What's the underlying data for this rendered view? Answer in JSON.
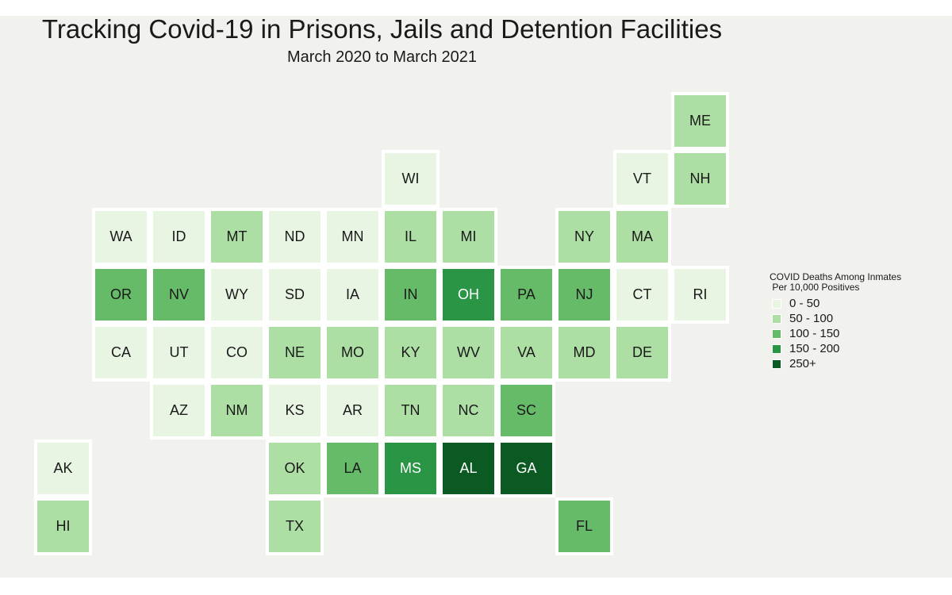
{
  "title": "Tracking Covid-19 in Prisons, Jails and Detention Facilities",
  "subtitle": "March 2020 to March 2021",
  "legend": {
    "title": "COVID Deaths Among Inmates\n Per 10,000 Positives",
    "items": [
      {
        "label": "0 - 50",
        "color": "#e9f5e3"
      },
      {
        "label": "50 - 100",
        "color": "#addfa4"
      },
      {
        "label": "100 - 150",
        "color": "#66bb69"
      },
      {
        "label": "150 - 200",
        "color": "#2b9546"
      },
      {
        "label": "250+",
        "color": "#0c5a23"
      }
    ]
  },
  "chart_data": {
    "type": "heatmap",
    "encoding": "tile grid map of US states; value = legend bin index (0 = 0 - 50 ... 4 = 250+)",
    "states": [
      {
        "abbr": "ME",
        "row": 0,
        "col": 11,
        "bin": 1
      },
      {
        "abbr": "WI",
        "row": 1,
        "col": 6,
        "bin": 0
      },
      {
        "abbr": "VT",
        "row": 1,
        "col": 10,
        "bin": 0
      },
      {
        "abbr": "NH",
        "row": 1,
        "col": 11,
        "bin": 1
      },
      {
        "abbr": "WA",
        "row": 2,
        "col": 1,
        "bin": 0
      },
      {
        "abbr": "ID",
        "row": 2,
        "col": 2,
        "bin": 0
      },
      {
        "abbr": "MT",
        "row": 2,
        "col": 3,
        "bin": 1
      },
      {
        "abbr": "ND",
        "row": 2,
        "col": 4,
        "bin": 0
      },
      {
        "abbr": "MN",
        "row": 2,
        "col": 5,
        "bin": 0
      },
      {
        "abbr": "IL",
        "row": 2,
        "col": 6,
        "bin": 1
      },
      {
        "abbr": "MI",
        "row": 2,
        "col": 7,
        "bin": 1
      },
      {
        "abbr": "NY",
        "row": 2,
        "col": 9,
        "bin": 1
      },
      {
        "abbr": "MA",
        "row": 2,
        "col": 10,
        "bin": 1
      },
      {
        "abbr": "OR",
        "row": 3,
        "col": 1,
        "bin": 2
      },
      {
        "abbr": "NV",
        "row": 3,
        "col": 2,
        "bin": 2
      },
      {
        "abbr": "WY",
        "row": 3,
        "col": 3,
        "bin": 0
      },
      {
        "abbr": "SD",
        "row": 3,
        "col": 4,
        "bin": 0
      },
      {
        "abbr": "IA",
        "row": 3,
        "col": 5,
        "bin": 0
      },
      {
        "abbr": "IN",
        "row": 3,
        "col": 6,
        "bin": 2
      },
      {
        "abbr": "OH",
        "row": 3,
        "col": 7,
        "bin": 3
      },
      {
        "abbr": "PA",
        "row": 3,
        "col": 8,
        "bin": 2
      },
      {
        "abbr": "NJ",
        "row": 3,
        "col": 9,
        "bin": 2
      },
      {
        "abbr": "CT",
        "row": 3,
        "col": 10,
        "bin": 0
      },
      {
        "abbr": "RI",
        "row": 3,
        "col": 11,
        "bin": 0
      },
      {
        "abbr": "CA",
        "row": 4,
        "col": 1,
        "bin": 0
      },
      {
        "abbr": "UT",
        "row": 4,
        "col": 2,
        "bin": 0
      },
      {
        "abbr": "CO",
        "row": 4,
        "col": 3,
        "bin": 0
      },
      {
        "abbr": "NE",
        "row": 4,
        "col": 4,
        "bin": 1
      },
      {
        "abbr": "MO",
        "row": 4,
        "col": 5,
        "bin": 1
      },
      {
        "abbr": "KY",
        "row": 4,
        "col": 6,
        "bin": 1
      },
      {
        "abbr": "WV",
        "row": 4,
        "col": 7,
        "bin": 1
      },
      {
        "abbr": "VA",
        "row": 4,
        "col": 8,
        "bin": 1
      },
      {
        "abbr": "MD",
        "row": 4,
        "col": 9,
        "bin": 1
      },
      {
        "abbr": "DE",
        "row": 4,
        "col": 10,
        "bin": 1
      },
      {
        "abbr": "AZ",
        "row": 5,
        "col": 2,
        "bin": 0
      },
      {
        "abbr": "NM",
        "row": 5,
        "col": 3,
        "bin": 1
      },
      {
        "abbr": "KS",
        "row": 5,
        "col": 4,
        "bin": 0
      },
      {
        "abbr": "AR",
        "row": 5,
        "col": 5,
        "bin": 0
      },
      {
        "abbr": "TN",
        "row": 5,
        "col": 6,
        "bin": 1
      },
      {
        "abbr": "NC",
        "row": 5,
        "col": 7,
        "bin": 1
      },
      {
        "abbr": "SC",
        "row": 5,
        "col": 8,
        "bin": 2
      },
      {
        "abbr": "AK",
        "row": 6,
        "col": 0,
        "bin": 0
      },
      {
        "abbr": "OK",
        "row": 6,
        "col": 4,
        "bin": 1
      },
      {
        "abbr": "LA",
        "row": 6,
        "col": 5,
        "bin": 2
      },
      {
        "abbr": "MS",
        "row": 6,
        "col": 6,
        "bin": 3
      },
      {
        "abbr": "AL",
        "row": 6,
        "col": 7,
        "bin": 4
      },
      {
        "abbr": "GA",
        "row": 6,
        "col": 8,
        "bin": 4
      },
      {
        "abbr": "HI",
        "row": 7,
        "col": 0,
        "bin": 1
      },
      {
        "abbr": "TX",
        "row": 7,
        "col": 4,
        "bin": 1
      },
      {
        "abbr": "FL",
        "row": 7,
        "col": 9,
        "bin": 2
      }
    ]
  }
}
